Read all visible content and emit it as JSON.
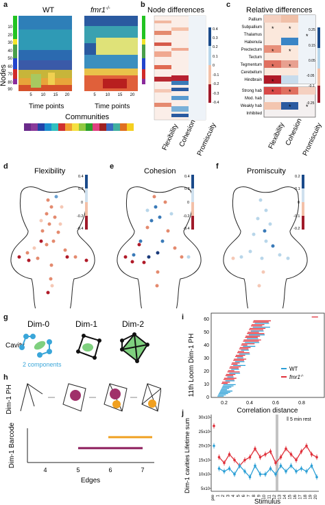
{
  "panels": {
    "a": {
      "letter": "a",
      "wt_title": "WT",
      "fmr_title": "fmr1",
      "fmr_sup": "-/-",
      "ylabel": "Nodes",
      "xlabel": "Time points",
      "yticks": [
        "10",
        "20",
        "30",
        "40",
        "50",
        "60",
        "70",
        "80",
        "90"
      ],
      "xticks": [
        "5",
        "10",
        "15",
        "20"
      ],
      "communities_label": "Communities"
    },
    "b": {
      "letter": "b",
      "title": "Node differences",
      "columns": [
        "Flexibility",
        "Cohesion",
        "Promiscuity"
      ],
      "colorbar_ticks": [
        "0.4",
        "0.3",
        "0.2",
        "0.1",
        "0",
        "-0.1",
        "-0.2",
        "-0.3",
        "-0.4"
      ],
      "colorbar_label": "WT - fmr1"
    },
    "c": {
      "letter": "c",
      "title": "Relative differences",
      "rows_top": [
        "Pallium",
        "Subpallium",
        "Thalamus",
        "Habenula",
        "Prectectum",
        "Tectum",
        "Tegmentum",
        "Cerebellum",
        "Hindbrain"
      ],
      "rows_bottom": [
        "Strong hab",
        "Mod. hab",
        "Weakly hab",
        "Inhibited"
      ],
      "columns": [
        "Flexibility",
        "Cohesion",
        "Promiscuity"
      ],
      "colorbar_ticks": [
        "0.25",
        "0.15",
        "0.05",
        "-0.05",
        "-0.1",
        "-0.25"
      ],
      "colorbar_label": "WT - fmr1"
    },
    "d": {
      "letter": "d",
      "title": "Flexibility",
      "colorbar_ticks": [
        "0.4",
        "0.2",
        "0",
        "-0.2",
        "-0.4"
      ],
      "colorbar_label": "WT - fmr1"
    },
    "e": {
      "letter": "e",
      "title": "Cohesion",
      "colorbar_ticks": [
        "0.4",
        "0.2",
        "0",
        "-0.2",
        "-0.4"
      ],
      "colorbar_label": "WT - fmr1"
    },
    "f": {
      "letter": "f",
      "title": "Promiscuity",
      "colorbar_ticks": [
        "0.2",
        "0.1",
        "0",
        "-0.1",
        "-0.2"
      ],
      "colorbar_label": "WT - fmr1"
    },
    "g": {
      "letter": "g",
      "row_label": "Cavity",
      "dims": [
        "Dim-0",
        "Dim-1",
        "Dim-2"
      ],
      "components_note": "2 components"
    },
    "h": {
      "letter": "h",
      "ph_label": "Dim-1 PH",
      "barcode_label": "Dim-1 Barcode",
      "xlabel": "Edges",
      "xticks": [
        "4",
        "5",
        "6",
        "7"
      ]
    },
    "i": {
      "letter": "i",
      "ylabel": "11th Loom Dim-1 PH",
      "xlabel": "Correlation distance",
      "yticks": [
        "0",
        "10",
        "20",
        "30",
        "40",
        "50",
        "60"
      ],
      "xticks": [
        "0.2",
        "0.4",
        "0.6",
        "0.8"
      ],
      "legend": [
        "WT",
        "fmr1"
      ],
      "legend_sup": "-/-"
    },
    "j": {
      "letter": "j",
      "ylabel": "Dim-1 cavities Lifetime sum",
      "xlabel": "Stimulus",
      "yticks": [
        "30x10",
        "25x10",
        "20x10",
        "15x10",
        "10x10",
        "5x10"
      ],
      "xticks": [
        "pre",
        "1",
        "2",
        "3",
        "4",
        "5",
        "6",
        "7",
        "8",
        "9",
        "10",
        "11",
        "12",
        "13",
        "14",
        "15",
        "16",
        "17",
        "18",
        "19",
        "20"
      ],
      "rest_label": "5 min rest"
    }
  },
  "colors": {
    "wt": "#2b9fd6",
    "fmr": "#e0303a",
    "orange": "#f0a020",
    "purple": "#8b1a5a",
    "green": "#7fd07f",
    "blue_comp": "#3aa6d9"
  },
  "chart_data": [
    {
      "type": "line",
      "title": "",
      "xlabel": "Stimulus",
      "ylabel": "Dim-1 cavities Lifetime sum",
      "categories": [
        "pre",
        "1",
        "2",
        "3",
        "4",
        "5",
        "6",
        "7",
        "8",
        "9",
        "10",
        "11",
        "12",
        "13",
        "14",
        "15",
        "16",
        "17",
        "18",
        "19",
        "20"
      ],
      "series": [
        {
          "name": "fmr1",
          "values": [
            27,
            16,
            14,
            17,
            15,
            13,
            15,
            16,
            19,
            16,
            17,
            18,
            14,
            16,
            19,
            17,
            15,
            18,
            20,
            17,
            16
          ]
        },
        {
          "name": "WT",
          "values": [
            20,
            12,
            11,
            12,
            10,
            13,
            11,
            9,
            13,
            10,
            10,
            12,
            10,
            13,
            11,
            13,
            11,
            12,
            11,
            13,
            9
          ]
        }
      ],
      "ylim": [
        4,
        31
      ],
      "yunit": "x10"
    }
  ]
}
